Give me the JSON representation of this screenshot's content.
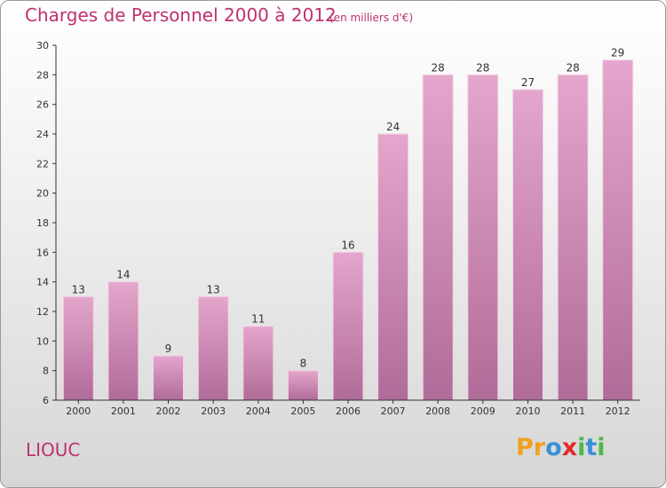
{
  "chart_data": {
    "type": "bar",
    "title": "Charges de Personnel 2000 à 2012",
    "subtitle": "(en milliers d'€)",
    "categories": [
      "2000",
      "2001",
      "2002",
      "2003",
      "2004",
      "2005",
      "2006",
      "2007",
      "2008",
      "2009",
      "2010",
      "2011",
      "2012"
    ],
    "values": [
      13,
      14,
      9,
      13,
      11,
      8,
      16,
      24,
      28,
      28,
      27,
      28,
      29
    ],
    "ylim": [
      6,
      30
    ],
    "yticks": [
      6,
      8,
      10,
      12,
      14,
      16,
      18,
      20,
      22,
      24,
      26,
      28,
      30
    ],
    "grid": false,
    "bar_color_top": "#e4a6cc",
    "bar_color_bottom": "#b06c98",
    "bar_edge_color": "#f4d2e6"
  },
  "place_name": "LIOUC",
  "logo": {
    "letters": [
      "P",
      "r",
      "o",
      "x",
      "i",
      "t",
      "i"
    ],
    "colors": [
      "#f0a020",
      "#f0a020",
      "#3a8fd8",
      "#e02a2a",
      "#4cb848",
      "#3a8fd8",
      "#4cb848"
    ]
  },
  "colors": {
    "title": "#c03070"
  }
}
